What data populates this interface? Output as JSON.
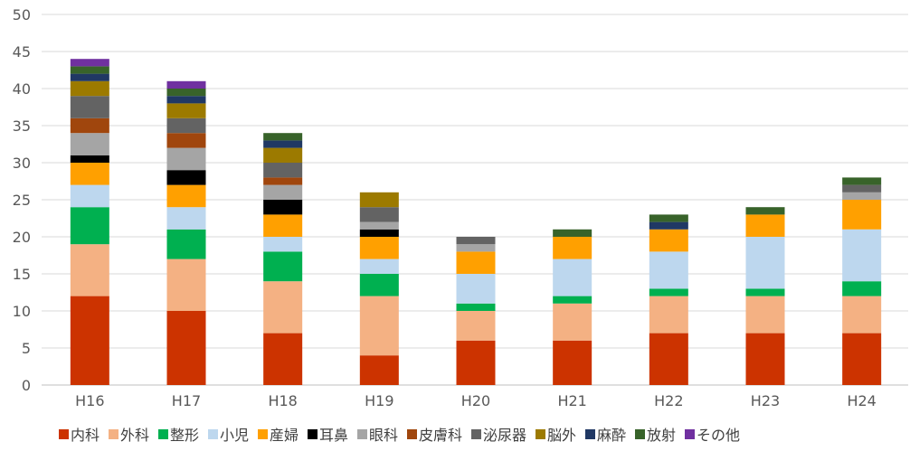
{
  "chart_data": {
    "type": "bar",
    "stacked": true,
    "categories": [
      "H16",
      "H17",
      "H18",
      "H19",
      "H20",
      "H21",
      "H22",
      "H23",
      "H24"
    ],
    "ylim": [
      0,
      50
    ],
    "yticks": [
      0,
      5,
      10,
      15,
      20,
      25,
      30,
      35,
      40,
      45,
      50
    ],
    "grid": true,
    "legend_position": "bottom",
    "series": [
      {
        "name": "内科",
        "color": "#cc3300",
        "values": [
          12,
          10,
          7,
          4,
          6,
          6,
          7,
          7,
          7
        ]
      },
      {
        "name": "外科",
        "color": "#f4b183",
        "values": [
          7,
          7,
          7,
          8,
          4,
          5,
          5,
          5,
          5
        ]
      },
      {
        "name": "整形",
        "color": "#00b050",
        "values": [
          5,
          4,
          4,
          3,
          1,
          1,
          1,
          1,
          2
        ]
      },
      {
        "name": "小児",
        "color": "#bdd7ee",
        "values": [
          3,
          3,
          2,
          2,
          4,
          5,
          5,
          7,
          7
        ]
      },
      {
        "name": "産婦",
        "color": "#ffa000",
        "values": [
          3,
          3,
          3,
          3,
          3,
          3,
          3,
          3,
          4
        ]
      },
      {
        "name": "耳鼻",
        "color": "#000000",
        "values": [
          1,
          2,
          2,
          1,
          0,
          0,
          0,
          0,
          0
        ]
      },
      {
        "name": "眼科",
        "color": "#a5a5a5",
        "values": [
          3,
          3,
          2,
          1,
          1,
          0,
          0,
          0,
          1
        ]
      },
      {
        "name": "皮膚科",
        "color": "#a0460d",
        "values": [
          2,
          2,
          1,
          0,
          0,
          0,
          0,
          0,
          0
        ]
      },
      {
        "name": "泌尿器",
        "color": "#636363",
        "values": [
          3,
          2,
          2,
          2,
          1,
          0,
          0,
          0,
          1
        ]
      },
      {
        "name": "脳外",
        "color": "#9c7a00",
        "values": [
          2,
          2,
          2,
          2,
          0,
          0,
          0,
          0,
          0
        ]
      },
      {
        "name": "麻酔",
        "color": "#203864",
        "values": [
          1,
          1,
          1,
          0,
          0,
          0,
          1,
          0,
          0
        ]
      },
      {
        "name": "放射",
        "color": "#38632a",
        "values": [
          1,
          1,
          1,
          0,
          0,
          1,
          1,
          1,
          1
        ]
      },
      {
        "name": "その他",
        "color": "#7030a0",
        "values": [
          1,
          1,
          0,
          0,
          0,
          0,
          0,
          0,
          0
        ]
      }
    ]
  }
}
